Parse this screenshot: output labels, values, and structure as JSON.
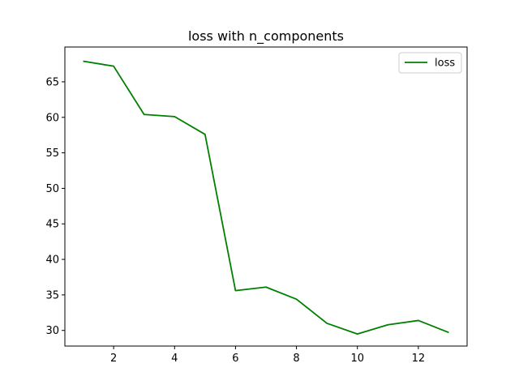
{
  "chart_data": {
    "type": "line",
    "title": "loss with n_components",
    "xlabel": "",
    "ylabel": "",
    "x": [
      1,
      2,
      3,
      4,
      5,
      6,
      7,
      8,
      9,
      10,
      11,
      12,
      13
    ],
    "series": [
      {
        "name": "loss",
        "color": "#008000",
        "values": [
          67.9,
          67.2,
          60.4,
          60.1,
          57.6,
          35.6,
          36.1,
          34.4,
          31.0,
          29.5,
          30.8,
          31.4,
          29.7
        ]
      }
    ],
    "xlim": [
      0.4,
      13.6
    ],
    "ylim": [
      27.8,
      69.9
    ],
    "xticks": [
      2,
      4,
      6,
      8,
      10,
      12
    ],
    "yticks": [
      30,
      35,
      40,
      45,
      50,
      55,
      60,
      65
    ],
    "grid": false,
    "legend_position": "top-right"
  }
}
